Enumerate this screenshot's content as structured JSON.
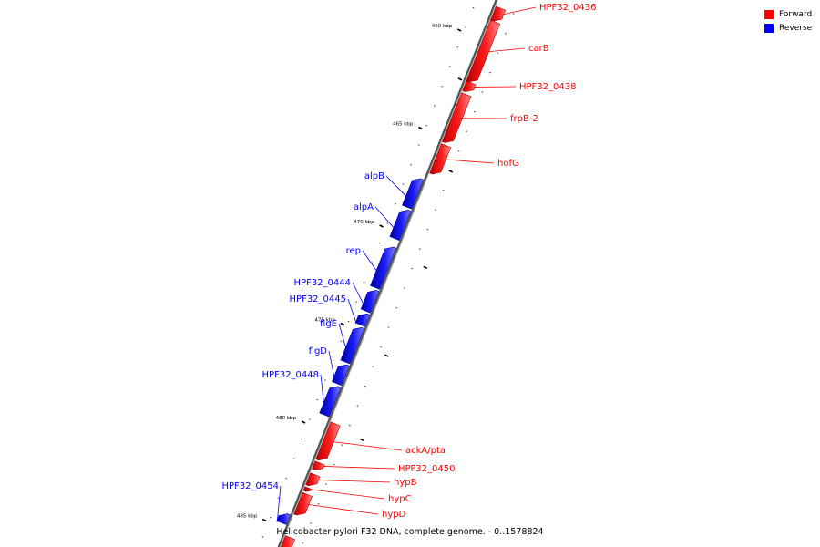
{
  "caption": "Helicobacter pylori F32 DNA, complete genome. - 0..1578824",
  "legend": {
    "forward_label": "Forward",
    "reverse_label": "Reverse",
    "forward_color": "#ff0000",
    "reverse_color": "#0000ff"
  },
  "backbone_color": "#888888",
  "chart_data": {
    "type": "genome-map",
    "kbp_marks": [
      {
        "kbp": 460,
        "label": "460 kbp"
      },
      {
        "kbp": 465,
        "label": "465 kbp"
      },
      {
        "kbp": 470,
        "label": "470 kbp"
      },
      {
        "kbp": 475,
        "label": "475 kbp"
      },
      {
        "kbp": 480,
        "label": "480 kbp"
      },
      {
        "kbp": 485,
        "label": "485 kbp"
      }
    ],
    "genes": [
      {
        "name": "HPF32_0436",
        "strand": "forward",
        "start": 458.9,
        "end": 459.6
      },
      {
        "name": "carB",
        "strand": "forward",
        "start": 459.6,
        "end": 462.7
      },
      {
        "name": "HPF32_0438",
        "strand": "forward",
        "start": 462.7,
        "end": 463.2
      },
      {
        "name": "frpB-2",
        "strand": "forward",
        "start": 463.3,
        "end": 465.8
      },
      {
        "name": "hofG",
        "strand": "forward",
        "start": 465.9,
        "end": 467.4
      },
      {
        "name": "alpB",
        "strand": "reverse",
        "start": 467.8,
        "end": 469.3
      },
      {
        "name": "alpA",
        "strand": "reverse",
        "start": 469.4,
        "end": 470.9
      },
      {
        "name": "rep",
        "strand": "reverse",
        "start": 471.3,
        "end": 473.4
      },
      {
        "name": "HPF32_0444",
        "strand": "reverse",
        "start": 473.5,
        "end": 474.6
      },
      {
        "name": "HPF32_0445",
        "strand": "reverse",
        "start": 474.7,
        "end": 475.3
      },
      {
        "name": "flgE",
        "strand": "reverse",
        "start": 475.4,
        "end": 477.2
      },
      {
        "name": "flgD",
        "strand": "reverse",
        "start": 477.3,
        "end": 478.3
      },
      {
        "name": "HPF32_0448",
        "strand": "reverse",
        "start": 478.4,
        "end": 479.9
      },
      {
        "name": "ackA/pta",
        "strand": "forward",
        "start": 480.1,
        "end": 482.0
      },
      {
        "name": "HPF32_0450",
        "strand": "forward",
        "start": 482.1,
        "end": 482.5
      },
      {
        "name": "hypB",
        "strand": "forward",
        "start": 482.7,
        "end": 483.3
      },
      {
        "name": "hypC",
        "strand": "forward",
        "start": 483.4,
        "end": 483.6
      },
      {
        "name": "hypD",
        "strand": "forward",
        "start": 483.7,
        "end": 484.8
      },
      {
        "name": "HPF32_0454",
        "strand": "reverse",
        "start": 484.9,
        "end": 485.4
      },
      {
        "name": "",
        "strand": "forward",
        "start": 485.9,
        "end": 487.0
      }
    ]
  }
}
